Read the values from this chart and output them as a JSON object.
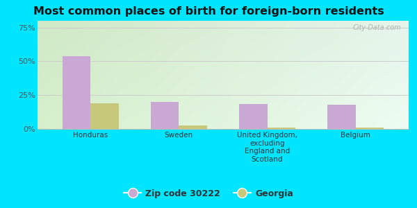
{
  "title": "Most common places of birth for foreign-born residents",
  "categories": [
    "Honduras",
    "Sweden",
    "United Kingdom,\nexcluding\nEngland and\nScotland",
    "Belgium"
  ],
  "zip_values": [
    54.0,
    20.0,
    18.5,
    18.0
  ],
  "georgia_values": [
    19.0,
    2.5,
    1.0,
    0.8
  ],
  "zip_color": "#c9a8d4",
  "georgia_color": "#c8c87a",
  "yticks": [
    0,
    25,
    50,
    75
  ],
  "ylim": [
    0,
    80
  ],
  "outer_background": "#00e5ff",
  "plot_bg_left": "#d8eecc",
  "plot_bg_right": "#e8f8f0",
  "legend_zip": "Zip code 30222",
  "legend_georgia": "Georgia",
  "watermark": "City-Data.com",
  "bar_width": 0.32,
  "title_fontsize": 11.5
}
